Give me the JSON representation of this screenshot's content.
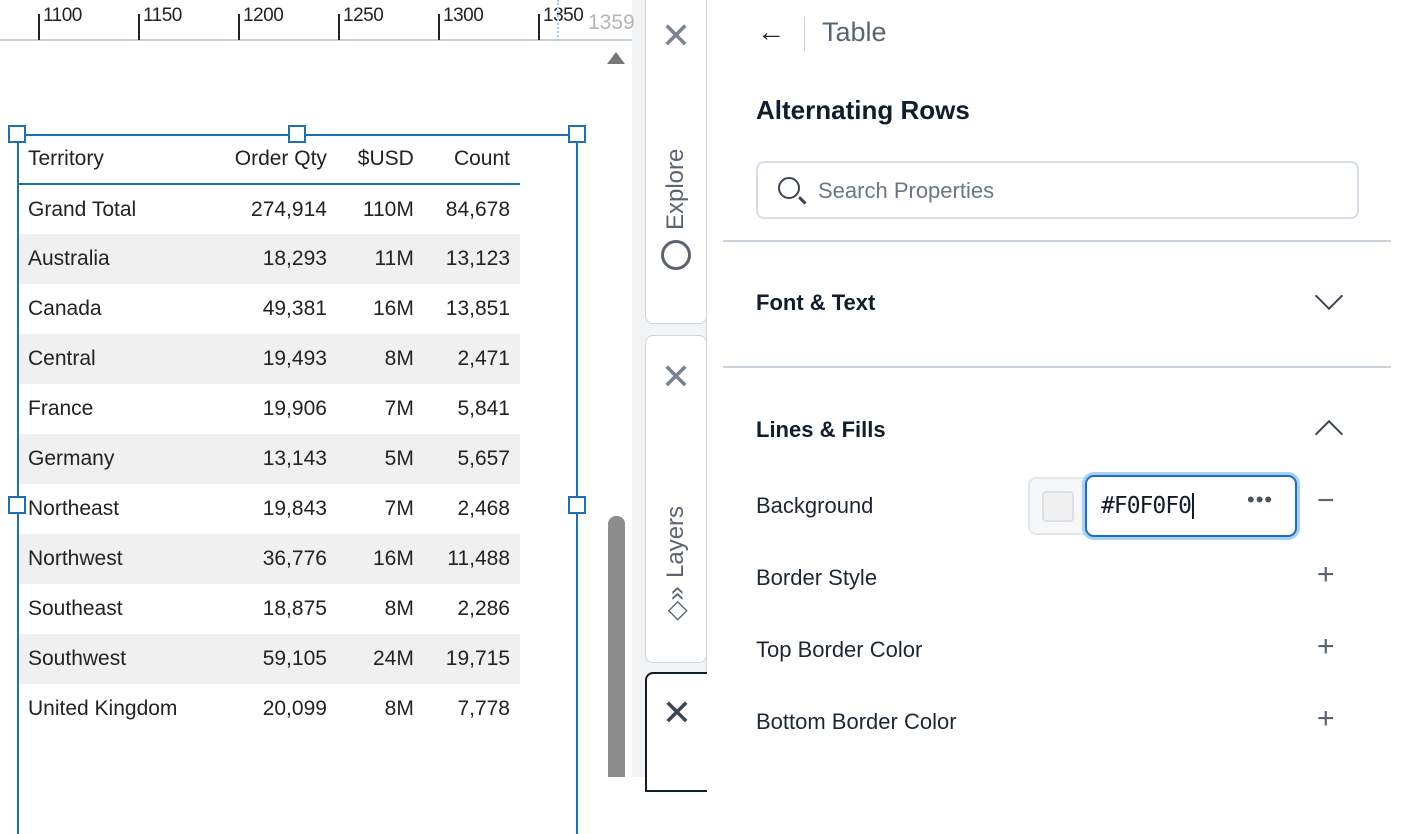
{
  "ruler": {
    "ticks": [
      "1100",
      "1150",
      "1200",
      "1250",
      "1300",
      "1350"
    ],
    "cursor_value": "1359"
  },
  "table": {
    "columns": [
      "Territory",
      "Order Qty",
      "$USD",
      "Count"
    ],
    "rows": [
      [
        "Grand Total",
        "274,914",
        "110M",
        "84,678"
      ],
      [
        "Australia",
        "18,293",
        "11M",
        "13,123"
      ],
      [
        "Canada",
        "49,381",
        "16M",
        "13,851"
      ],
      [
        "Central",
        "19,493",
        "8M",
        "2,471"
      ],
      [
        "France",
        "19,906",
        "7M",
        "5,841"
      ],
      [
        "Germany",
        "13,143",
        "5M",
        "5,657"
      ],
      [
        "Northeast",
        "19,843",
        "7M",
        "2,468"
      ],
      [
        "Northwest",
        "36,776",
        "16M",
        "11,488"
      ],
      [
        "Southeast",
        "18,875",
        "8M",
        "2,286"
      ],
      [
        "Southwest",
        "59,105",
        "24M",
        "19,715"
      ],
      [
        "United Kingdom",
        "20,099",
        "8M",
        "7,778"
      ]
    ],
    "alt_row_color": "#f0f0f0"
  },
  "side_tabs": {
    "explore": "Explore",
    "layers": "Layers"
  },
  "panel": {
    "breadcrumb": "Table",
    "title": "Alternating Rows",
    "search_placeholder": "Search Properties",
    "sections": {
      "font_text": "Font & Text",
      "lines_fills": "Lines & Fills"
    },
    "properties": {
      "background": {
        "label": "Background",
        "value": "#F0F0F0"
      },
      "border_style": "Border Style",
      "top_border_color": "Top Border Color",
      "bottom_border_color": "Bottom Border Color"
    }
  },
  "colors": {
    "selection": "#1f6fb5",
    "focus": "#1a6fc4"
  }
}
